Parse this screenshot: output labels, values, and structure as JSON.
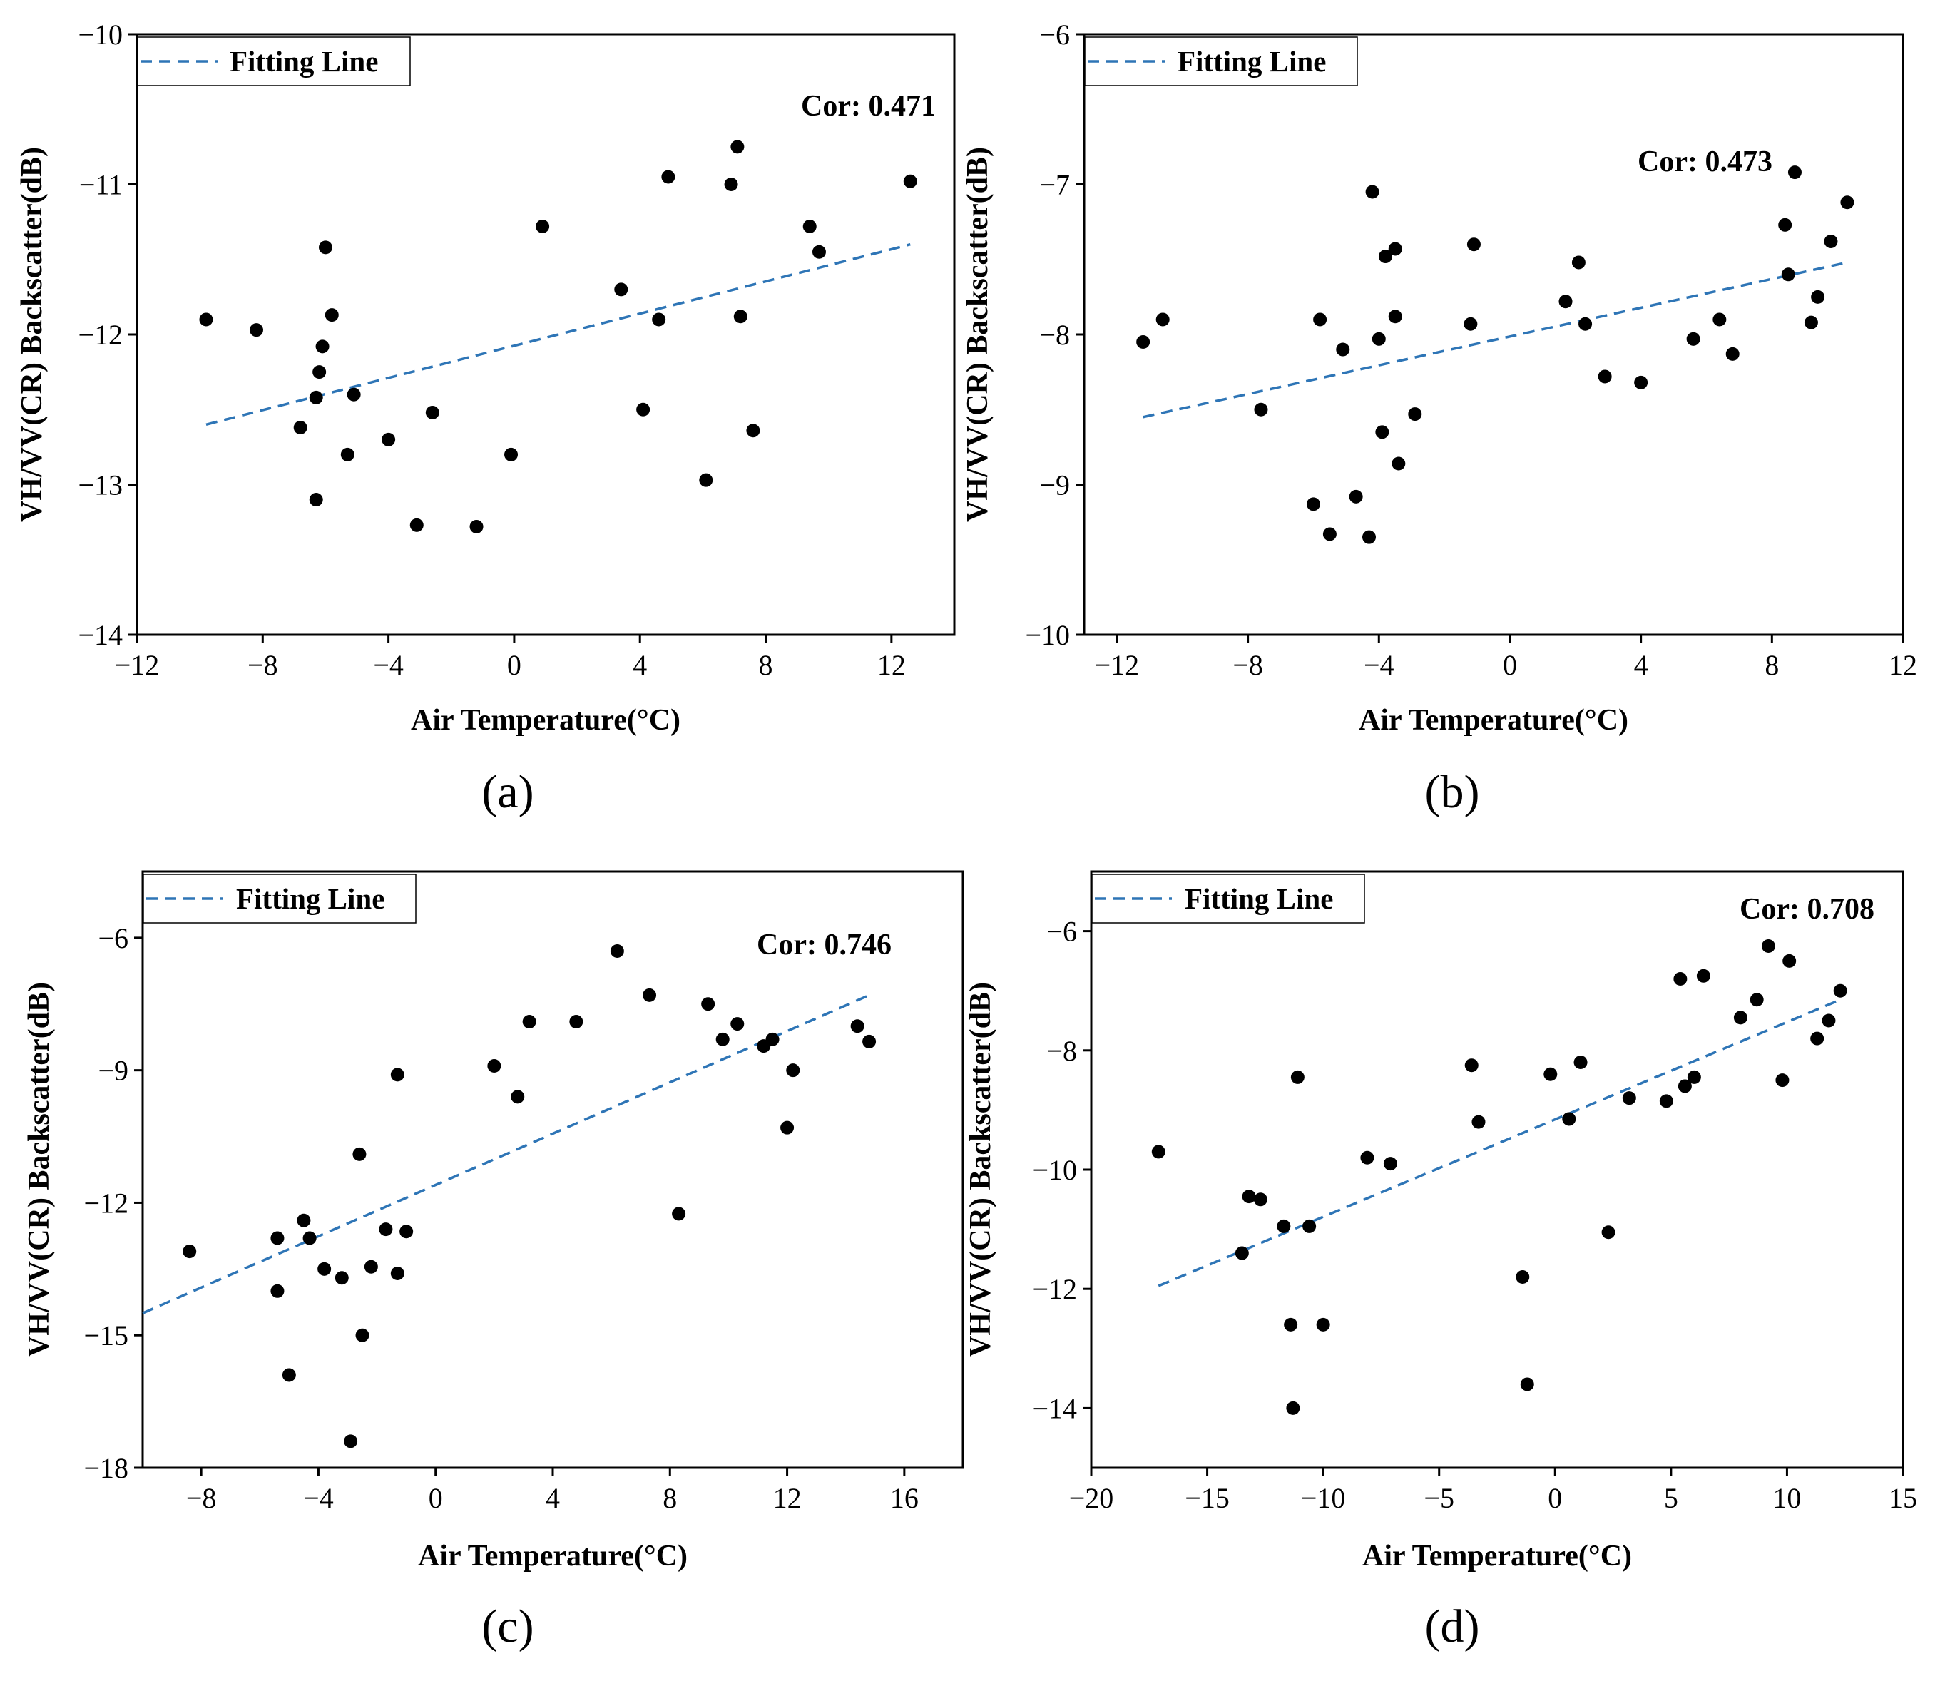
{
  "colors": {
    "fit_line": "#2E75B6",
    "points": "#000000"
  },
  "chart_data": [
    {
      "type": "scatter",
      "panel_label": "(a)",
      "xlabel": "Air Temperature(°C)",
      "ylabel": "VH/VV(CR) Backscatter(dB)",
      "xlim": [
        -12,
        14
      ],
      "ylim": [
        -14,
        -10
      ],
      "xticks": [
        -12,
        -8,
        -4,
        0,
        4,
        8,
        12
      ],
      "xtick_labels": [
        "−12",
        "−8",
        "−4",
        "0",
        "4",
        "8",
        "12"
      ],
      "yticks": [
        -14,
        -13,
        -12,
        -11,
        -10
      ],
      "ytick_labels": [
        "−14",
        "−13",
        "−12",
        "−11",
        "−10"
      ],
      "legend": "Fitting Line",
      "annotation": "Cor: 0.471",
      "fit_line": {
        "x": [
          -9.8,
          12.6
        ],
        "y": [
          -12.6,
          -11.4
        ]
      },
      "points": [
        [
          -9.8,
          -11.9
        ],
        [
          -8.2,
          -11.97
        ],
        [
          -6.8,
          -12.62
        ],
        [
          -6.3,
          -12.42
        ],
        [
          -6.2,
          -12.25
        ],
        [
          -6.1,
          -12.08
        ],
        [
          -6.0,
          -11.42
        ],
        [
          -5.8,
          -11.87
        ],
        [
          -5.3,
          -12.8
        ],
        [
          -5.1,
          -12.4
        ],
        [
          -6.3,
          -13.1
        ],
        [
          -4.0,
          -12.7
        ],
        [
          -3.1,
          -13.27
        ],
        [
          -2.6,
          -12.52
        ],
        [
          -1.2,
          -13.28
        ],
        [
          -0.1,
          -12.8
        ],
        [
          0.9,
          -11.28
        ],
        [
          3.4,
          -11.7
        ],
        [
          4.1,
          -12.5
        ],
        [
          4.6,
          -11.9
        ],
        [
          4.9,
          -10.95
        ],
        [
          6.1,
          -12.97
        ],
        [
          6.9,
          -11.0
        ],
        [
          7.1,
          -10.75
        ],
        [
          7.2,
          -11.88
        ],
        [
          7.6,
          -12.64
        ],
        [
          9.4,
          -11.28
        ],
        [
          9.7,
          -11.45
        ],
        [
          12.6,
          -10.98
        ]
      ]
    },
    {
      "type": "scatter",
      "panel_label": "(b)",
      "xlabel": "Air Temperature(°C)",
      "ylabel": "VH/VV(CR) Backscatter(dB)",
      "xlim": [
        -13,
        12
      ],
      "ylim": [
        -10,
        -6
      ],
      "xticks": [
        -12,
        -8,
        -4,
        0,
        4,
        8,
        12
      ],
      "xtick_labels": [
        "−12",
        "−8",
        "−4",
        "0",
        "4",
        "8",
        "12"
      ],
      "yticks": [
        -10,
        -9,
        -8,
        -7,
        -6
      ],
      "ytick_labels": [
        "−10",
        "−9",
        "−8",
        "−7",
        "−6"
      ],
      "legend": "Fitting Line",
      "annotation": "Cor: 0.473",
      "fit_line": {
        "x": [
          -11.2,
          10.3
        ],
        "y": [
          -8.55,
          -7.52
        ]
      },
      "points": [
        [
          -11.2,
          -8.05
        ],
        [
          -10.6,
          -7.9
        ],
        [
          -7.6,
          -8.5
        ],
        [
          -6.0,
          -9.13
        ],
        [
          -5.8,
          -7.9
        ],
        [
          -5.5,
          -9.33
        ],
        [
          -5.1,
          -8.1
        ],
        [
          -4.7,
          -9.08
        ],
        [
          -4.3,
          -9.35
        ],
        [
          -4.2,
          -7.05
        ],
        [
          -4.0,
          -8.03
        ],
        [
          -3.9,
          -8.65
        ],
        [
          -3.8,
          -7.48
        ],
        [
          -3.5,
          -7.43
        ],
        [
          -3.5,
          -7.88
        ],
        [
          -3.4,
          -8.86
        ],
        [
          -2.9,
          -8.53
        ],
        [
          -1.2,
          -7.93
        ],
        [
          -1.1,
          -7.4
        ],
        [
          1.7,
          -7.78
        ],
        [
          2.1,
          -7.52
        ],
        [
          2.3,
          -7.93
        ],
        [
          2.9,
          -8.28
        ],
        [
          4.0,
          -8.32
        ],
        [
          5.6,
          -8.03
        ],
        [
          6.4,
          -7.9
        ],
        [
          6.8,
          -8.13
        ],
        [
          8.4,
          -7.27
        ],
        [
          8.5,
          -7.6
        ],
        [
          8.7,
          -6.92
        ],
        [
          9.2,
          -7.92
        ],
        [
          9.4,
          -7.75
        ],
        [
          9.8,
          -7.38
        ],
        [
          10.3,
          -7.12
        ]
      ]
    },
    {
      "type": "scatter",
      "panel_label": "(c)",
      "xlabel": "Air Temperature(°C)",
      "ylabel": "VH/VV(CR) Backscatter(dB)",
      "xlim": [
        -10,
        18
      ],
      "ylim": [
        -18,
        -4.5
      ],
      "xticks": [
        -8,
        -4,
        0,
        4,
        8,
        12,
        16
      ],
      "xtick_labels": [
        "−8",
        "−4",
        "0",
        "4",
        "8",
        "12",
        "16"
      ],
      "yticks": [
        -18,
        -15,
        -12,
        -9,
        -6
      ],
      "ytick_labels": [
        "−18",
        "−15",
        "−12",
        "−9",
        "−6"
      ],
      "legend": "Fitting Line",
      "annotation": "Cor: 0.746",
      "fit_line": {
        "x": [
          -10,
          14.8
        ],
        "y": [
          -14.5,
          -7.3
        ]
      },
      "points": [
        [
          -8.4,
          -13.1
        ],
        [
          -5.4,
          -12.8
        ],
        [
          -5.4,
          -14.0
        ],
        [
          -5.0,
          -15.9
        ],
        [
          -4.5,
          -12.4
        ],
        [
          -4.3,
          -12.8
        ],
        [
          -3.8,
          -13.5
        ],
        [
          -3.2,
          -13.7
        ],
        [
          -2.9,
          -17.4
        ],
        [
          -2.6,
          -10.9
        ],
        [
          -2.5,
          -15.0
        ],
        [
          -2.2,
          -13.45
        ],
        [
          -1.7,
          -12.6
        ],
        [
          -1.3,
          -13.6
        ],
        [
          -1.3,
          -9.1
        ],
        [
          -1.0,
          -12.65
        ],
        [
          2.0,
          -8.9
        ],
        [
          2.8,
          -9.6
        ],
        [
          3.2,
          -7.9
        ],
        [
          4.8,
          -7.9
        ],
        [
          6.2,
          -6.3
        ],
        [
          7.3,
          -7.3
        ],
        [
          8.3,
          -12.25
        ],
        [
          9.3,
          -7.5
        ],
        [
          9.8,
          -8.3
        ],
        [
          10.3,
          -7.95
        ],
        [
          11.2,
          -8.45
        ],
        [
          11.5,
          -8.3
        ],
        [
          12.0,
          -10.3
        ],
        [
          12.2,
          -9.0
        ],
        [
          14.4,
          -8.0
        ],
        [
          14.8,
          -8.35
        ]
      ]
    },
    {
      "type": "scatter",
      "panel_label": "(d)",
      "xlabel": "Air Temperature(°C)",
      "ylabel": "VH/VV(CR) Backscatter(dB)",
      "xlim": [
        -20,
        15
      ],
      "ylim": [
        -15,
        -5
      ],
      "xticks": [
        -20,
        -15,
        -10,
        -5,
        0,
        5,
        10,
        15
      ],
      "xtick_labels": [
        "−20",
        "−15",
        "−10",
        "−5",
        "0",
        "5",
        "10",
        "15"
      ],
      "yticks": [
        -14,
        -12,
        -10,
        -8,
        -6
      ],
      "ytick_labels": [
        "−14",
        "−12",
        "−10",
        "−8",
        "−6"
      ],
      "legend": "Fitting Line",
      "annotation": "Cor: 0.708",
      "fit_line": {
        "x": [
          -17.1,
          12.3
        ],
        "y": [
          -11.95,
          -7.15
        ]
      },
      "points": [
        [
          -17.1,
          -9.7
        ],
        [
          -13.5,
          -11.4
        ],
        [
          -13.2,
          -10.45
        ],
        [
          -12.7,
          -10.5
        ],
        [
          -11.7,
          -10.95
        ],
        [
          -11.4,
          -12.6
        ],
        [
          -11.3,
          -14.0
        ],
        [
          -11.1,
          -8.45
        ],
        [
          -10.6,
          -10.95
        ],
        [
          -10.0,
          -12.6
        ],
        [
          -8.1,
          -9.8
        ],
        [
          -7.1,
          -9.9
        ],
        [
          -3.6,
          -8.25
        ],
        [
          -3.3,
          -9.2
        ],
        [
          -1.4,
          -11.8
        ],
        [
          -1.2,
          -13.6
        ],
        [
          -0.2,
          -8.4
        ],
        [
          0.6,
          -9.15
        ],
        [
          1.1,
          -8.2
        ],
        [
          2.3,
          -11.05
        ],
        [
          3.2,
          -8.8
        ],
        [
          4.8,
          -8.85
        ],
        [
          5.4,
          -6.8
        ],
        [
          5.6,
          -8.6
        ],
        [
          6.0,
          -8.45
        ],
        [
          6.4,
          -6.75
        ],
        [
          8.0,
          -7.45
        ],
        [
          8.7,
          -7.15
        ],
        [
          9.2,
          -6.25
        ],
        [
          9.8,
          -8.5
        ],
        [
          10.1,
          -6.5
        ],
        [
          11.3,
          -7.8
        ],
        [
          11.8,
          -7.5
        ],
        [
          12.3,
          -7.0
        ]
      ]
    }
  ]
}
